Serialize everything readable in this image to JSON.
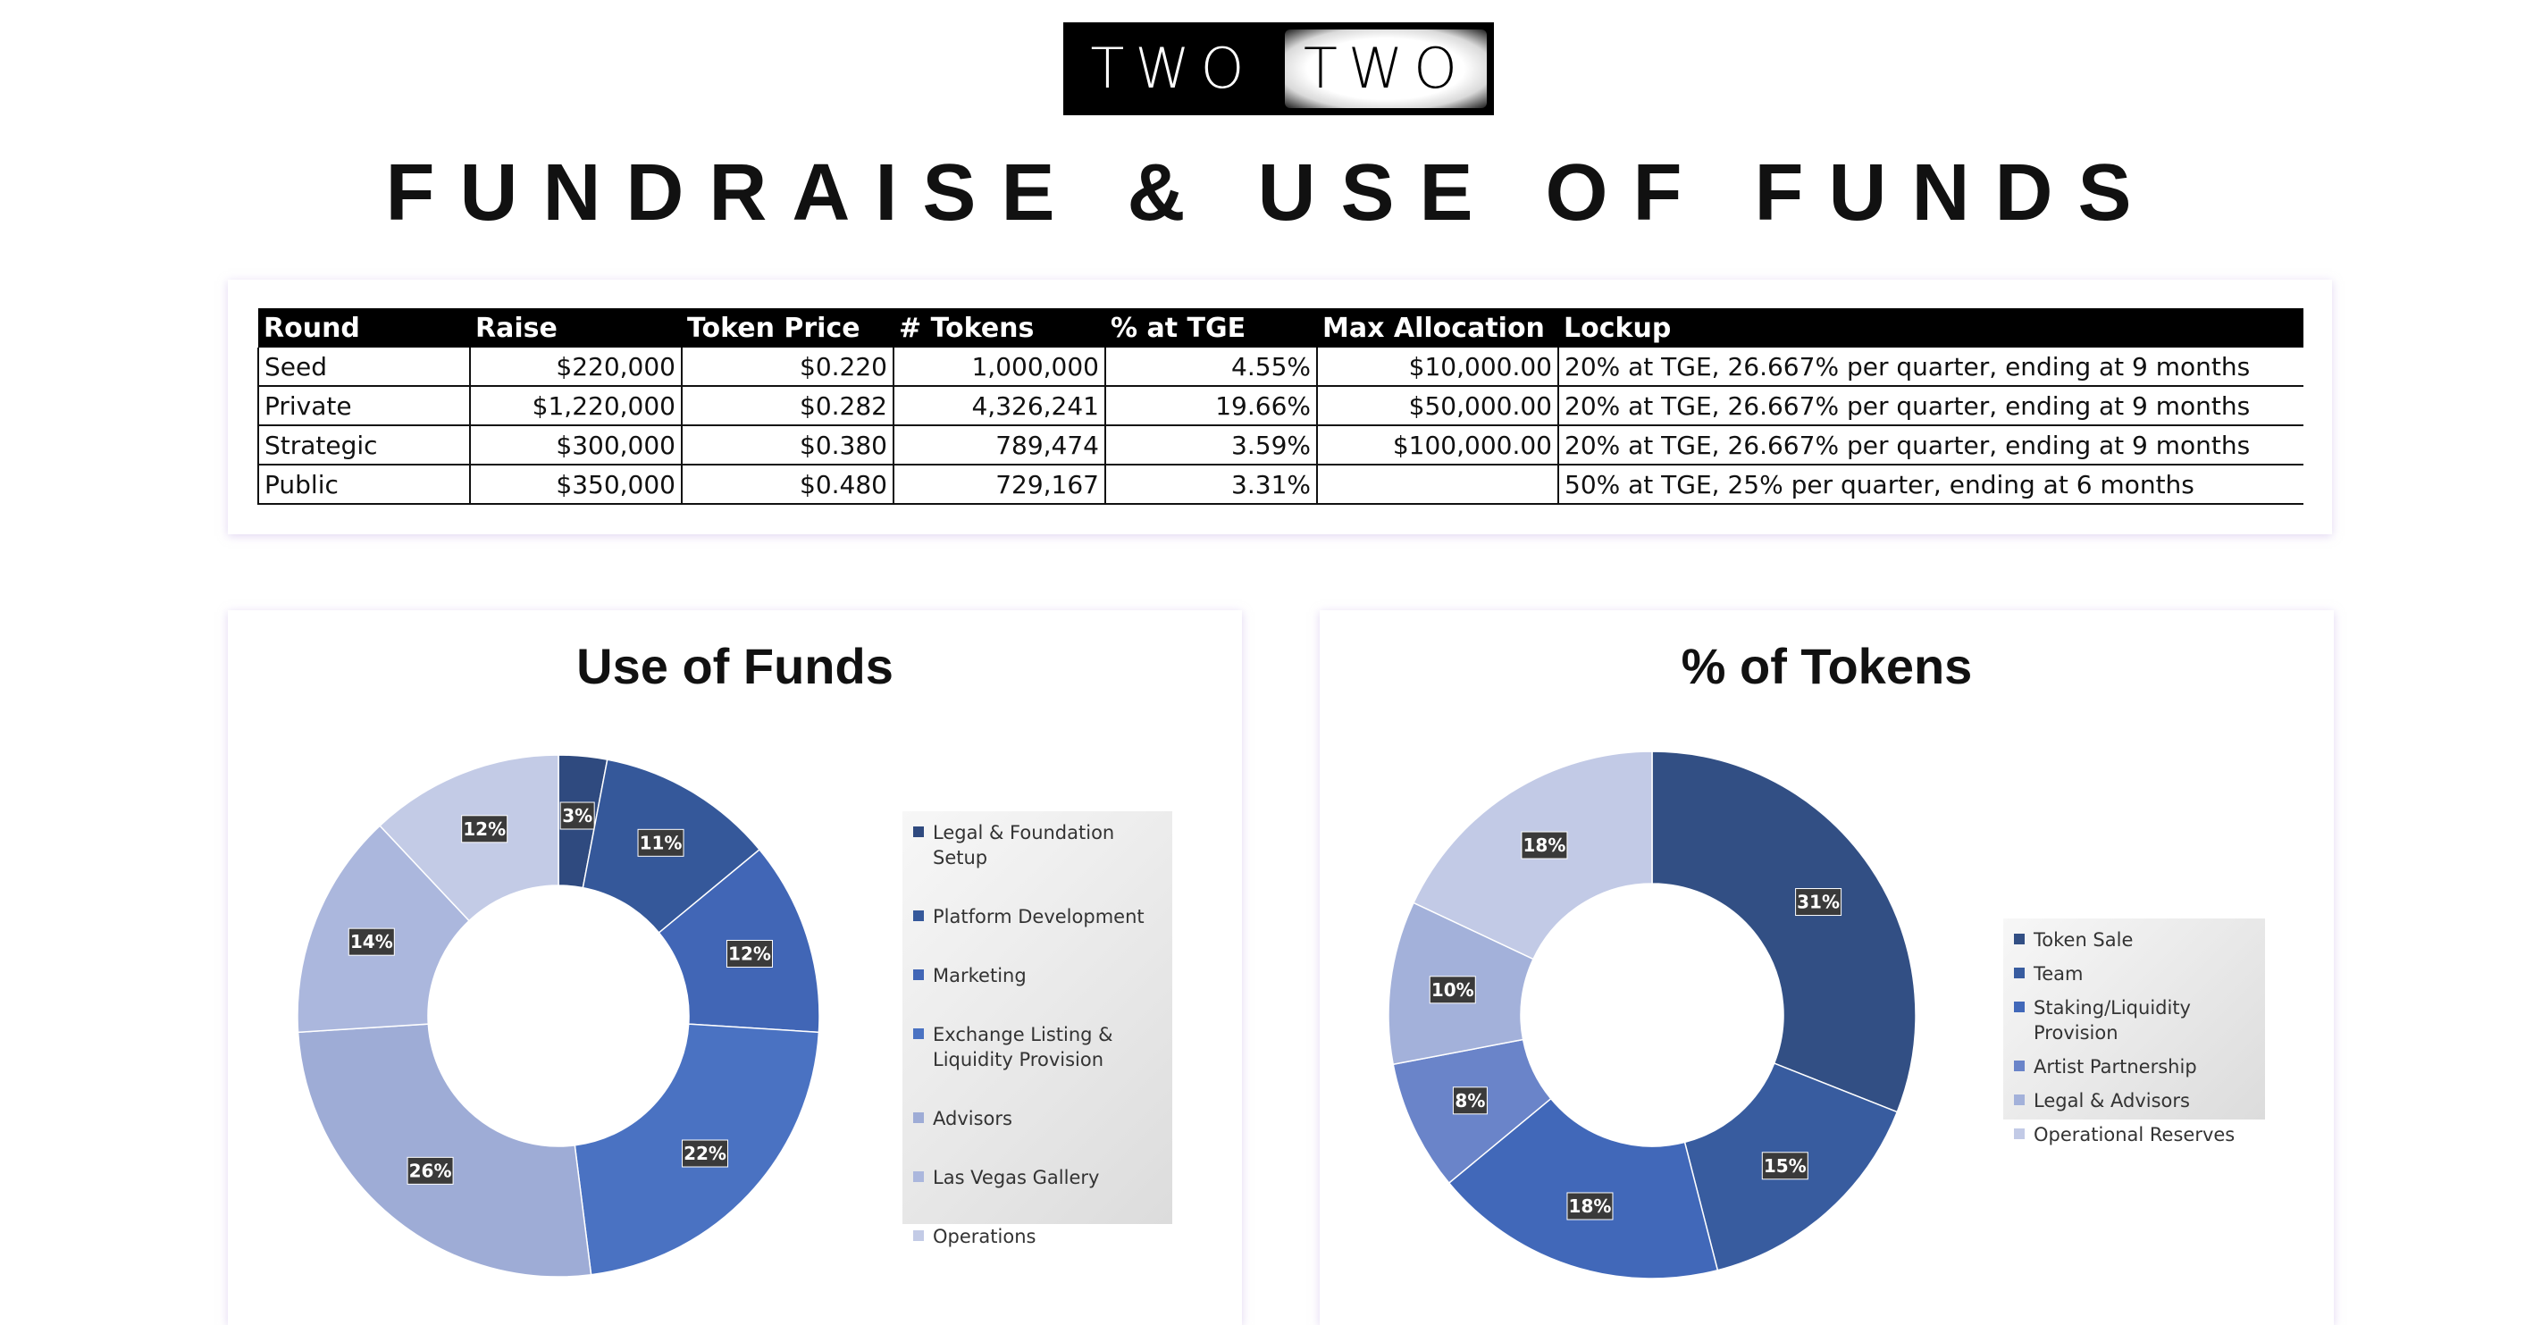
{
  "logo": {
    "left_text": "TWO",
    "right_text": "TWO"
  },
  "page_title": "FUNDRAISE & USE OF FUNDS",
  "table": {
    "headers": [
      "Round",
      "Raise",
      "Token Price",
      "# Tokens",
      "% at TGE",
      "Max Allocation",
      "Lockup"
    ],
    "rows": [
      [
        "Seed",
        "$220,000",
        "$0.220",
        "1,000,000",
        "4.55%",
        "$10,000.00",
        "20% at TGE, 26.667% per quarter, ending at 9 months"
      ],
      [
        "Private",
        "$1,220,000",
        "$0.282",
        "4,326,241",
        "19.66%",
        "$50,000.00",
        "20% at TGE, 26.667% per quarter, ending at 9 months"
      ],
      [
        "Strategic",
        "$300,000",
        "$0.380",
        "789,474",
        "3.59%",
        "$100,000.00",
        "20% at TGE, 26.667% per quarter, ending at 9 months"
      ],
      [
        "Public",
        "$350,000",
        "$0.480",
        "729,167",
        "3.31%",
        "",
        "50% at TGE, 25% per quarter, ending at 6 months"
      ]
    ]
  },
  "chart_data": [
    {
      "type": "pie",
      "title": "Use of Funds",
      "categories": [
        "Legal & Foundation Setup",
        "Platform Development",
        "Marketing",
        "Exchange Listing & Liquidity Provision",
        "Advisors",
        "Las Vegas Gallery",
        "Operations"
      ],
      "values": [
        3,
        11,
        12,
        22,
        26,
        14,
        12
      ],
      "value_labels": [
        "3%",
        "11%",
        "12%",
        "22%",
        "26%",
        "14%",
        "12%"
      ],
      "slice_order": [
        0,
        1,
        2,
        3,
        4,
        5,
        6
      ],
      "legend_placement": "right",
      "colors": [
        "#2f4a7f",
        "#35589a",
        "#4166b6",
        "#4a72c2",
        "#9eacd6",
        "#abb7dd",
        "#c3cbe6"
      ]
    },
    {
      "type": "pie",
      "title": "% of Tokens",
      "categories": [
        "Token Sale",
        "Team",
        "Staking/Liquidity Provision",
        "Artist Partnership",
        "Legal & Advisors",
        "Operational Reserves"
      ],
      "values": [
        31,
        15,
        18,
        8,
        10,
        18
      ],
      "value_labels": [
        "31%",
        "15%",
        "18%",
        "8%",
        "10%",
        "18%"
      ],
      "legend_placement": "right",
      "colors": [
        "#324f84",
        "#385c9f",
        "#4168b9",
        "#6a84c9",
        "#a3b1da",
        "#c2cae6"
      ]
    }
  ]
}
